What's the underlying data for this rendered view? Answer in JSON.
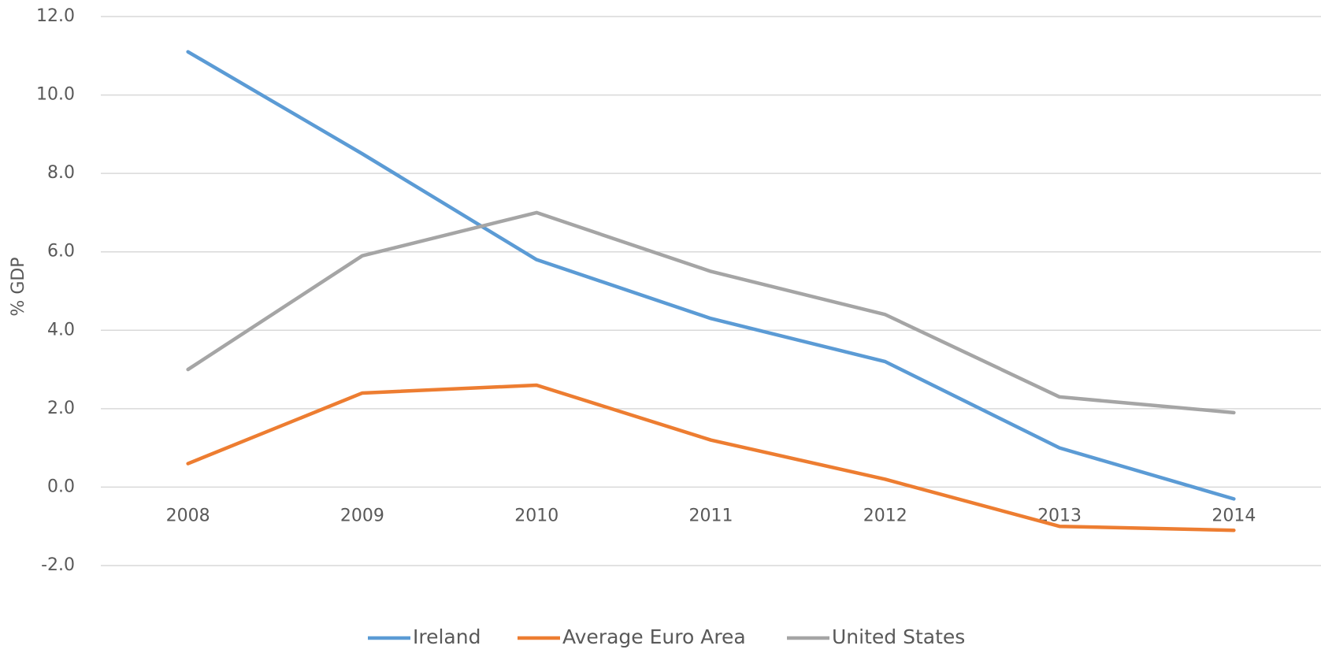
{
  "chart_data": {
    "type": "line",
    "y_label": "% GDP",
    "categories": [
      "2008",
      "2009",
      "2010",
      "2011",
      "2012",
      "2013",
      "2014"
    ],
    "series": [
      {
        "name": "Ireland",
        "color": "#5b9bd5",
        "values": [
          11.1,
          8.5,
          5.8,
          4.3,
          3.2,
          1.0,
          -0.3
        ]
      },
      {
        "name": "Average Euro Area",
        "color": "#ed7d31",
        "values": [
          0.6,
          2.4,
          2.6,
          1.2,
          0.2,
          -1.0,
          -1.1
        ]
      },
      {
        "name": "United States",
        "color": "#a5a5a5",
        "values": [
          3.0,
          5.9,
          7.0,
          5.5,
          4.4,
          2.3,
          1.9
        ]
      }
    ],
    "ylim": [
      -2,
      12
    ],
    "yticks": [
      {
        "value": -2,
        "label": "-2.0"
      },
      {
        "value": 0,
        "label": "0.0"
      },
      {
        "value": 2,
        "label": "2.0"
      },
      {
        "value": 4,
        "label": "4.0"
      },
      {
        "value": 6,
        "label": "6.0"
      },
      {
        "value": 8,
        "label": "8.0"
      },
      {
        "value": 10,
        "label": "10.0"
      },
      {
        "value": 12,
        "label": "12.0"
      }
    ],
    "grid": true,
    "legend": "bottom"
  }
}
